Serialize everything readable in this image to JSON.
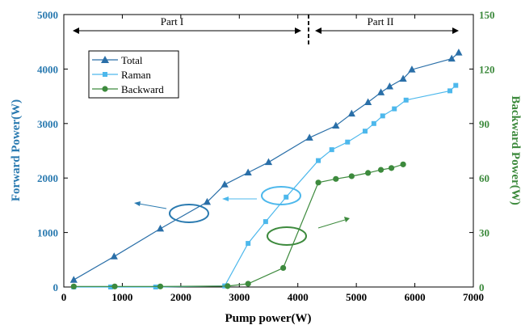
{
  "chart_data": {
    "type": "line",
    "x": {
      "label": "Pump power(W)",
      "range": [
        0,
        7000
      ],
      "ticks": [
        0,
        1000,
        2000,
        3000,
        4000,
        5000,
        6000,
        7000
      ]
    },
    "y_left": {
      "label": "Forward Power(W)",
      "range": [
        0,
        5000
      ],
      "ticks": [
        0,
        1000,
        2000,
        3000,
        4000,
        5000
      ],
      "color": "#2a7ab0"
    },
    "y_right": {
      "label": "Backward Power(W)",
      "range": [
        0,
        150
      ],
      "ticks": [
        0,
        30,
        60,
        90,
        120,
        150
      ],
      "color": "#3d8a3d"
    },
    "series": [
      {
        "name": "Total",
        "axis": "left",
        "marker": "triangle",
        "color": "#2a6fa8",
        "points": [
          [
            170,
            130
          ],
          [
            860,
            560
          ],
          [
            1650,
            1070
          ],
          [
            2450,
            1560
          ],
          [
            2750,
            1880
          ],
          [
            3150,
            2100
          ],
          [
            3500,
            2290
          ],
          [
            4200,
            2740
          ],
          [
            4650,
            2960
          ],
          [
            4920,
            3180
          ],
          [
            5200,
            3390
          ],
          [
            5420,
            3570
          ],
          [
            5570,
            3680
          ],
          [
            5800,
            3820
          ],
          [
            5950,
            3990
          ],
          [
            6630,
            4190
          ],
          [
            6750,
            4300
          ]
        ]
      },
      {
        "name": "Raman",
        "axis": "left",
        "marker": "square",
        "color": "#4db8ec",
        "points": [
          [
            170,
            0
          ],
          [
            800,
            0
          ],
          [
            1570,
            0
          ],
          [
            2750,
            20
          ],
          [
            3150,
            800
          ],
          [
            3450,
            1200
          ],
          [
            3800,
            1650
          ],
          [
            4350,
            2320
          ],
          [
            4580,
            2520
          ],
          [
            4850,
            2660
          ],
          [
            5150,
            2860
          ],
          [
            5300,
            3000
          ],
          [
            5450,
            3140
          ],
          [
            5650,
            3270
          ],
          [
            5850,
            3430
          ],
          [
            6600,
            3600
          ],
          [
            6700,
            3700
          ]
        ]
      },
      {
        "name": "Backward",
        "axis": "right",
        "marker": "circle",
        "color": "#3d8a3d",
        "points": [
          [
            170,
            0.3
          ],
          [
            870,
            0.3
          ],
          [
            1650,
            0.3
          ],
          [
            2800,
            0.5
          ],
          [
            3150,
            1.8
          ],
          [
            3750,
            10.5
          ],
          [
            4350,
            57.5
          ],
          [
            4650,
            59.5
          ],
          [
            4920,
            61
          ],
          [
            5200,
            62.8
          ],
          [
            5420,
            64.5
          ],
          [
            5600,
            65.5
          ],
          [
            5800,
            67.5
          ]
        ]
      }
    ],
    "legend": {
      "position": "top-left",
      "entries": [
        "Total",
        "Raman",
        "Backward"
      ]
    },
    "annotations": {
      "part1": "Part I",
      "part2": "Part II"
    },
    "grid": false
  }
}
